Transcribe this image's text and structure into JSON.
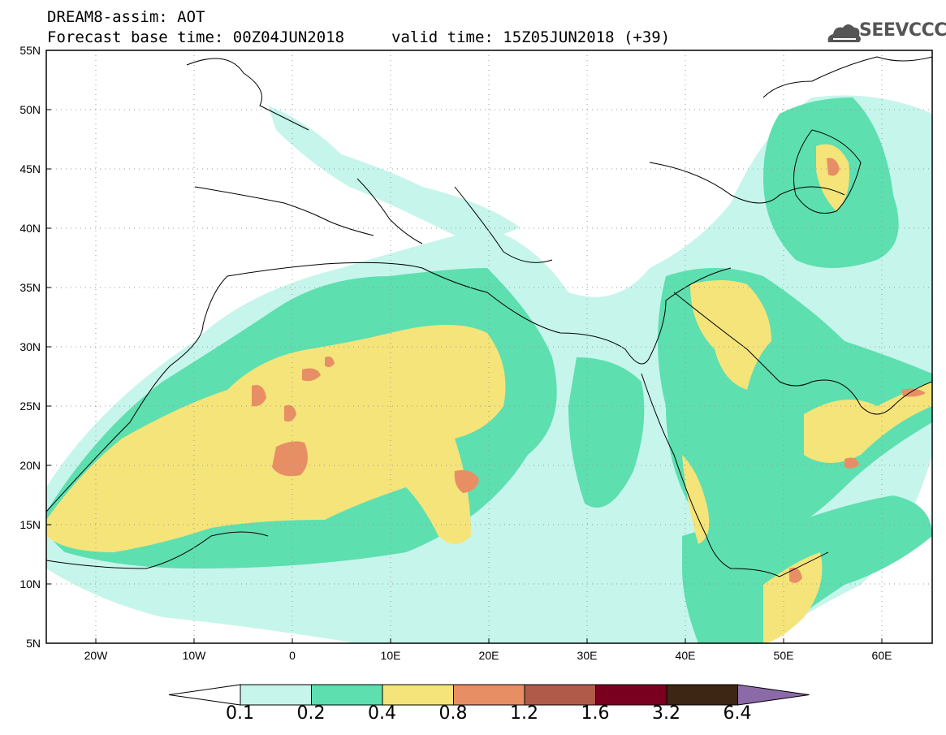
{
  "header": {
    "line1": "DREAM8-assim: AOT",
    "line2": "Forecast base time: 00Z04JUN2018",
    "valid": "valid time: 15Z05JUN2018 (+39)",
    "logo": "SEEVCCC"
  },
  "map": {
    "lon_range": [
      -25,
      65
    ],
    "lat_range": [
      5,
      55
    ],
    "x_ticks": [
      "20W",
      "10W",
      "0",
      "10E",
      "20E",
      "30E",
      "40E",
      "50E",
      "60E"
    ],
    "y_ticks": [
      "55N",
      "50N",
      "45N",
      "40N",
      "35N",
      "30N",
      "25N",
      "20N",
      "15N",
      "10N",
      "5N"
    ]
  },
  "colorbar": {
    "labels": [
      "0.1",
      "0.2",
      "0.4",
      "0.8",
      "1.2",
      "1.6",
      "3.2",
      "6.4"
    ],
    "colors": [
      "#ffffff",
      "#c6f5eb",
      "#5ddfb0",
      "#f5e47a",
      "#e88e64",
      "#b05a4a",
      "#7a0020",
      "#3d2614",
      "#8c6aa8"
    ]
  }
}
